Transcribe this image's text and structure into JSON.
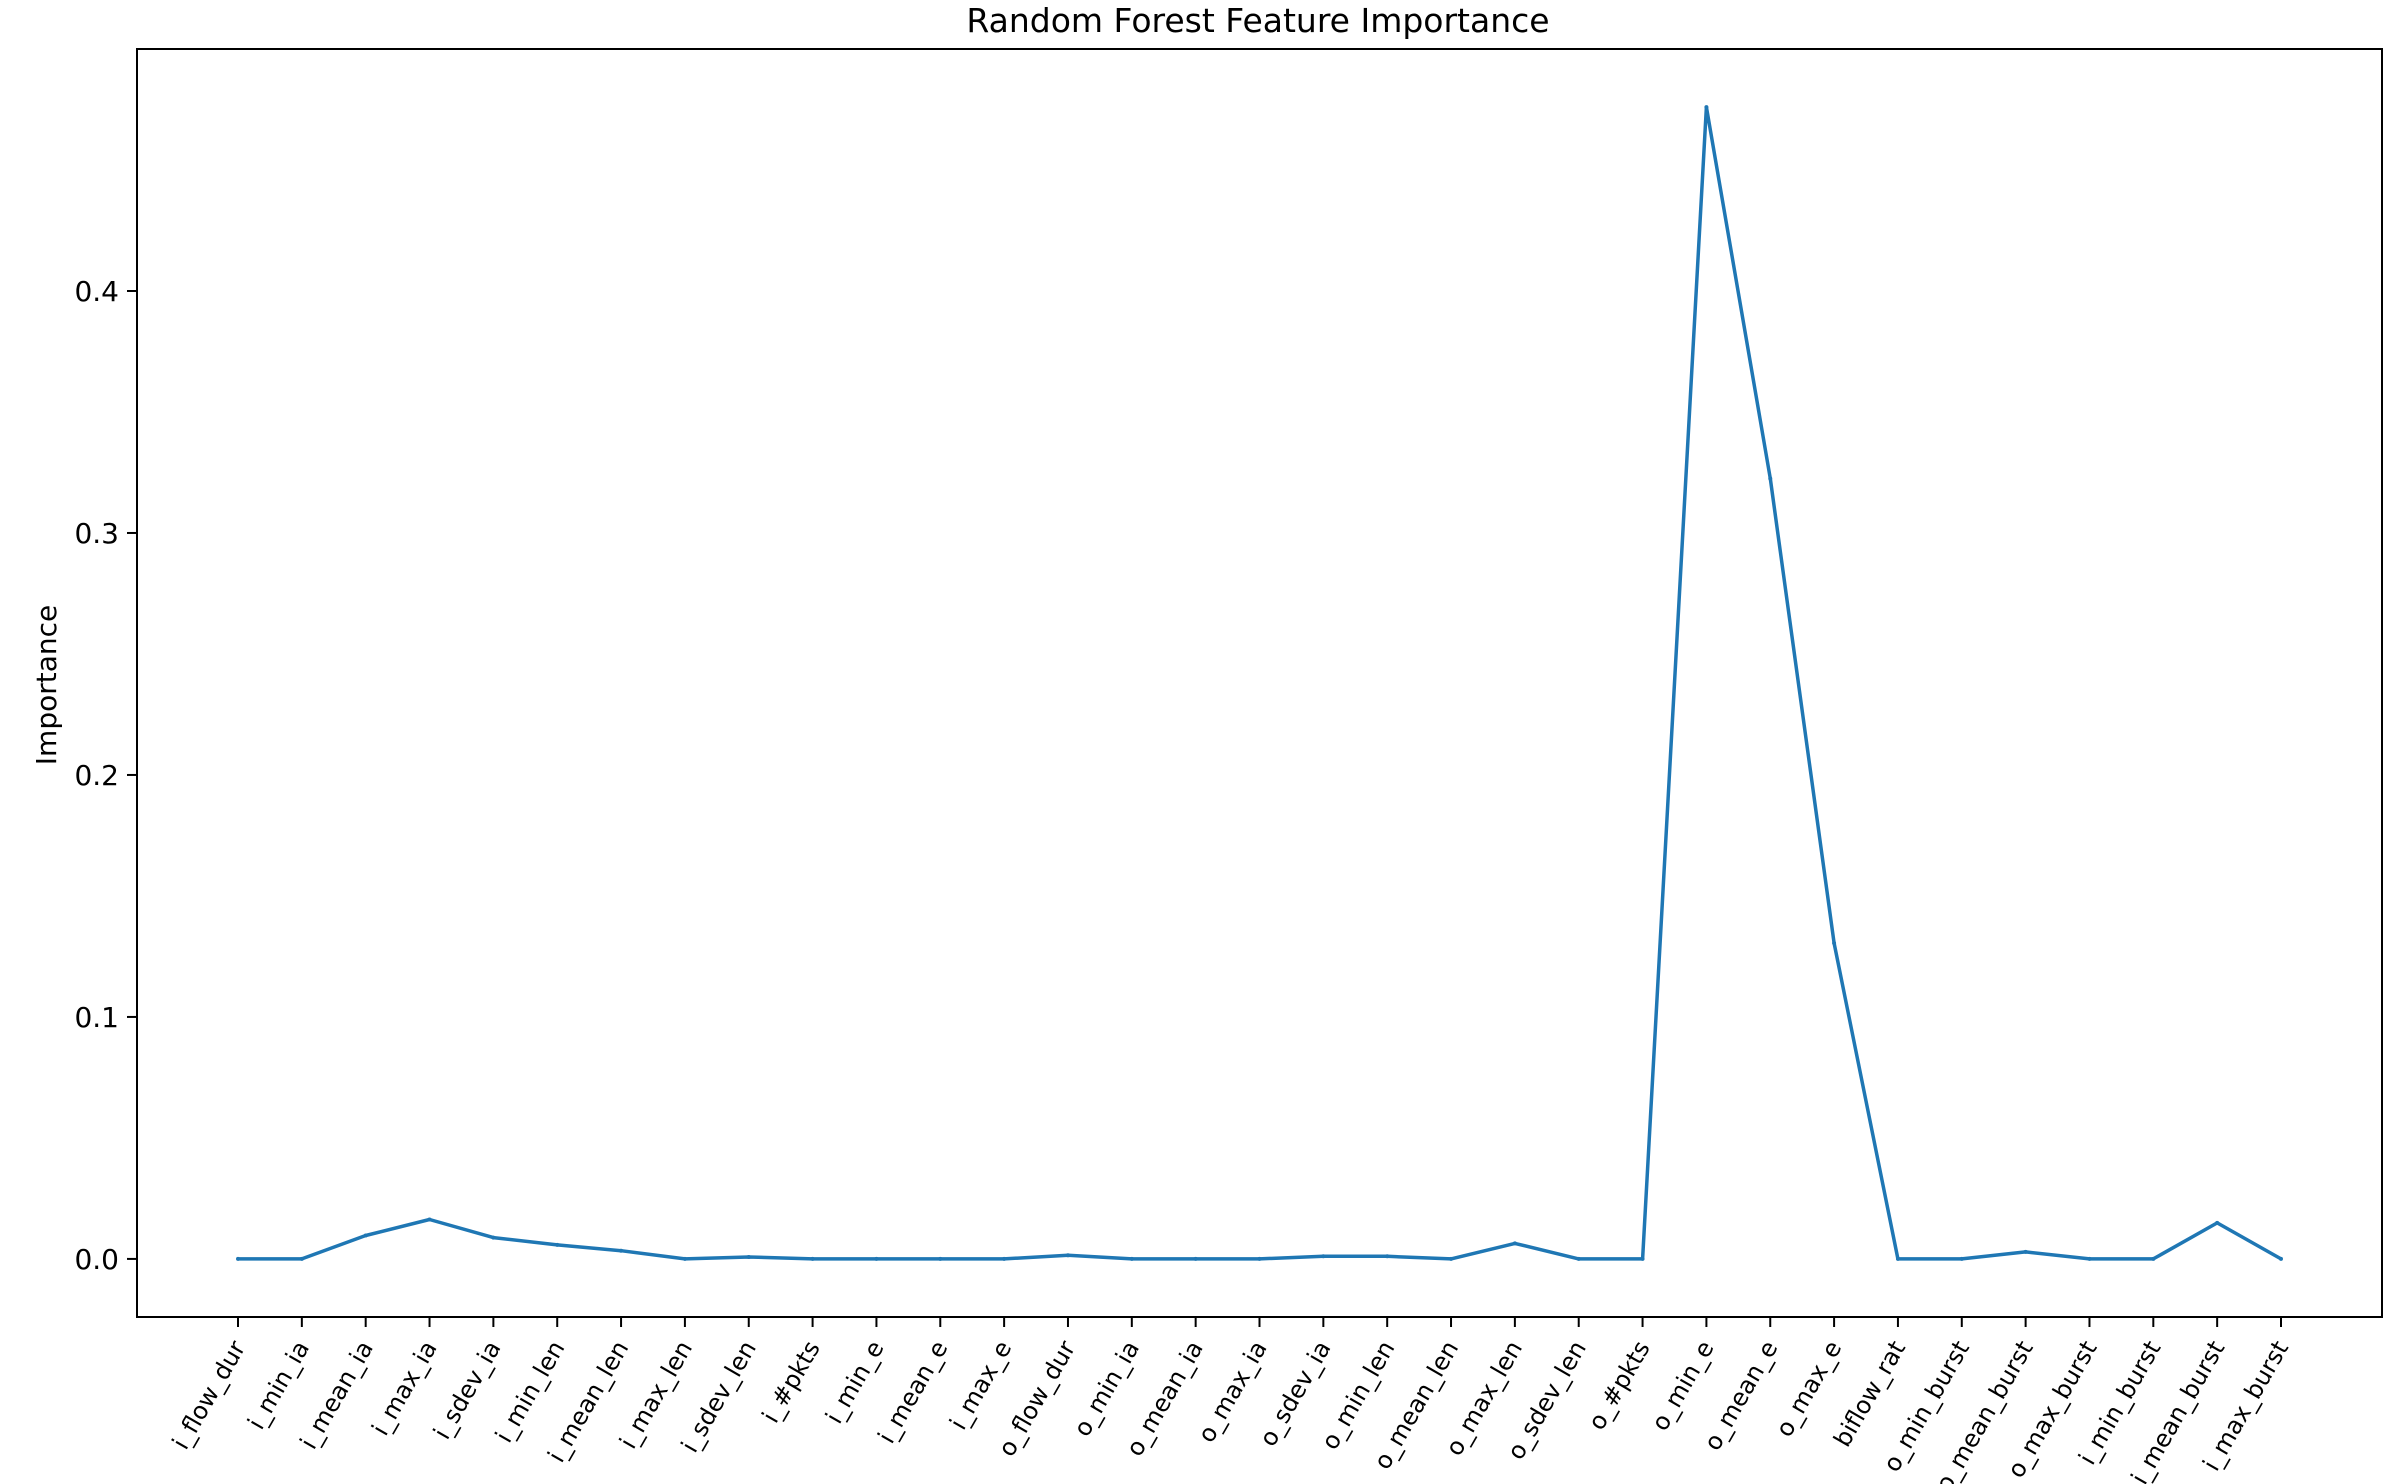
{
  "chart_data": {
    "type": "line",
    "title": "Random Forest Feature Importance",
    "xlabel": "",
    "ylabel": "Importance",
    "ylim": [
      -0.024,
      0.5
    ],
    "yticks": [
      0.0,
      0.1,
      0.2,
      0.3,
      0.4
    ],
    "ytick_labels": [
      "0.0",
      "0.1",
      "0.2",
      "0.3",
      "0.4"
    ],
    "grid": false,
    "line_color": "#1f77b4",
    "categories": [
      "i_flow_dur",
      "i_min_ia",
      "i_mean_ia",
      "i_max_ia",
      "i_sdev_ia",
      "i_min_len",
      "i_mean_len",
      "i_max_len",
      "i_sdev_len",
      "i_#pkts",
      "i_min_e",
      "i_mean_e",
      "i_max_e",
      "o_flow_dur",
      "o_min_ia",
      "o_mean_ia",
      "o_max_ia",
      "o_sdev_ia",
      "o_min_len",
      "o_mean_len",
      "o_max_len",
      "o_sdev_len",
      "o_#pkts",
      "o_min_e",
      "o_mean_e",
      "o_max_e",
      "biflow_rat",
      "o_min_burst",
      "o_mean_burst",
      "o_max_burst",
      "i_min_burst",
      "i_mean_burst",
      "i_max_burst"
    ],
    "values": [
      0.0,
      0.0,
      0.0097,
      0.0163,
      0.0088,
      0.0058,
      0.0034,
      0.0,
      0.0008,
      0.0,
      0.0,
      0.0,
      0.0,
      0.0015,
      0.0,
      0.0,
      0.0,
      0.0011,
      0.0011,
      0.0,
      0.0064,
      0.0,
      0.0,
      0.476,
      0.3225,
      0.1305,
      0.0,
      0.0,
      0.0029,
      0.0,
      0.0,
      0.0149,
      0.0
    ]
  }
}
